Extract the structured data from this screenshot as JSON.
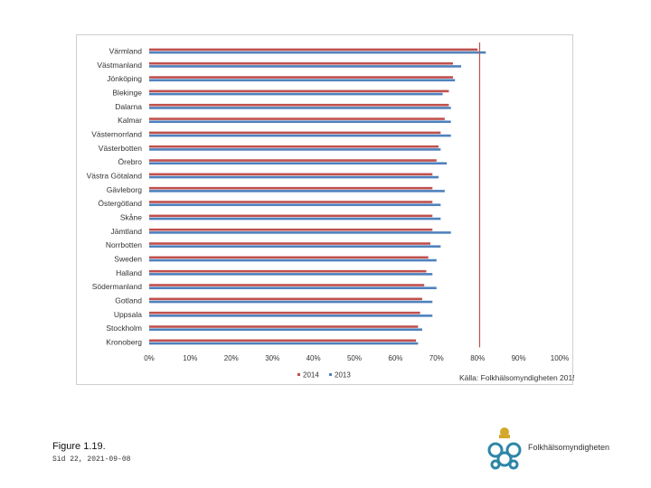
{
  "chart_data": {
    "type": "bar",
    "orientation": "horizontal",
    "categories": [
      "Värmland",
      "Västmanland",
      "Jönköping",
      "Blekinge",
      "Dalarna",
      "Kalmar",
      "Västernorrland",
      "Västerbotten",
      "Örebro",
      "Västra Götaland",
      "Gävleborg",
      "Östergötland",
      "Skåne",
      "Jämtland",
      "Norrbotten",
      "Sweden",
      "Halland",
      "Södermanland",
      "Gotland",
      "Uppsala",
      "Stockholm",
      "Kronoberg"
    ],
    "series": [
      {
        "name": "2014",
        "color": "#c0504d",
        "values": [
          80,
          74,
          74,
          73,
          73,
          72,
          71,
          70.5,
          70,
          69,
          69,
          69,
          69,
          69,
          68.5,
          68,
          67.5,
          67,
          66.5,
          66,
          65.5,
          65
        ]
      },
      {
        "name": "2013",
        "color": "#4f81bd",
        "values": [
          82,
          76,
          74.5,
          71.5,
          73.5,
          73.5,
          73.5,
          71,
          72.5,
          70.5,
          72,
          71,
          71,
          73.5,
          71,
          70,
          69,
          70,
          69,
          69,
          66.5,
          65.5
        ]
      }
    ],
    "reference_line": {
      "value": 80.5,
      "color": "#c0504d"
    },
    "xlim": [
      0,
      100
    ],
    "xticks": [
      "0%",
      "10%",
      "20%",
      "30%",
      "40%",
      "50%",
      "60%",
      "70%",
      "80%",
      "90%",
      "100%"
    ],
    "legend_position": "bottom",
    "grid": false,
    "source": "Källa: Folkhälsomyndigheten 2015"
  },
  "caption": "Figure 1.19.",
  "slide_date": "Sid 22, 2021-09-08",
  "logo_text": "Folkhälsomyndigheten"
}
